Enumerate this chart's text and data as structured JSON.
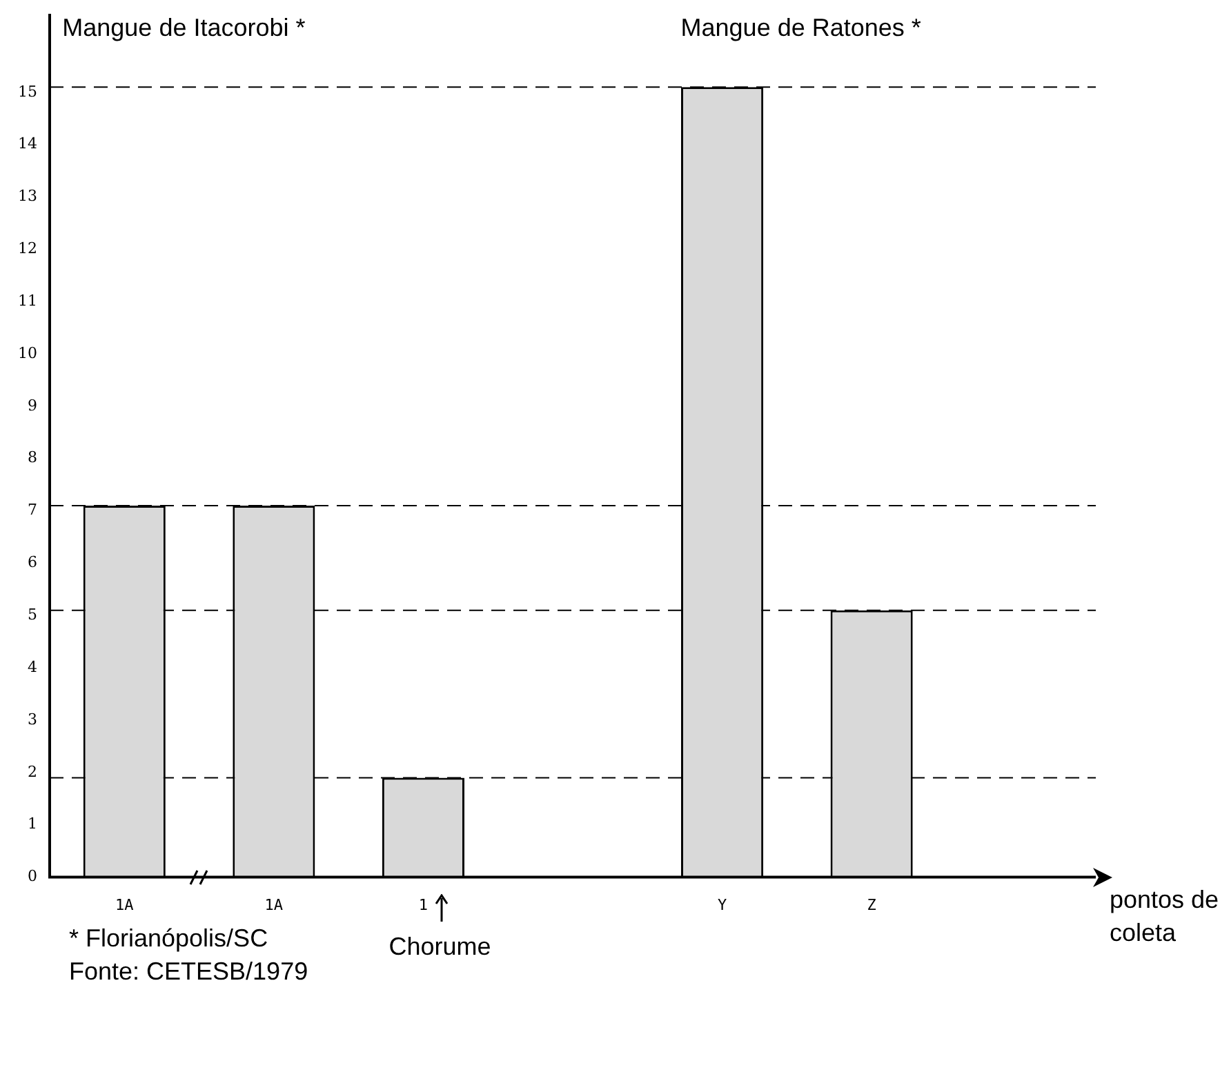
{
  "chart_data": {
    "type": "bar",
    "categories": [
      "1A",
      "1A",
      "1",
      null,
      "Y",
      "Z",
      null
    ],
    "values": [
      7.1,
      7.1,
      1.9,
      null,
      15.1,
      5.1,
      null
    ],
    "color": "#d9d9d9",
    "xlabel": "pontos de coleta",
    "ylim": [
      0,
      16.5
    ],
    "yticks": [
      0,
      1,
      2,
      3,
      4,
      5,
      6,
      7,
      8,
      9,
      10,
      11,
      12,
      13,
      14,
      15
    ],
    "grid": false,
    "legend": false,
    "ref_lines": [
      {
        "axis": "y",
        "value": 15.1,
        "line_style": "dashed"
      },
      {
        "axis": "y",
        "value": 7.1,
        "line_style": "dashed"
      },
      {
        "axis": "y",
        "value": 5.1,
        "line_style": "dashed"
      },
      {
        "axis": "y",
        "value": 1.9,
        "line_style": "dashed"
      }
    ],
    "annotations": [
      "Mangue de Itacorobi *",
      "Mangue de Ratones *",
      "Chorume",
      "* Florianópolis/SC",
      "Fonte: CETESB/1979"
    ]
  }
}
